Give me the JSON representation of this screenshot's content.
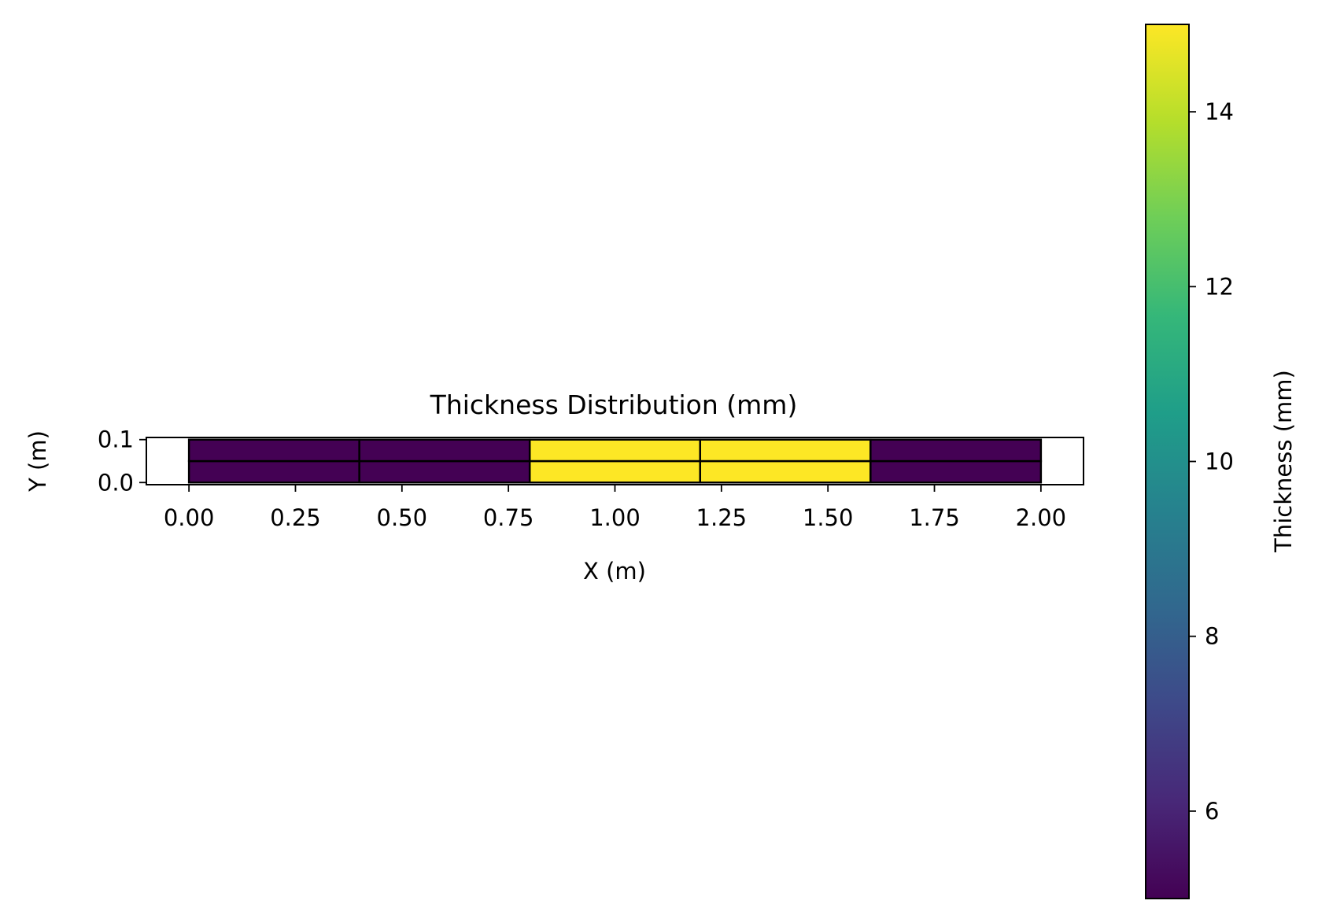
{
  "chart_data": {
    "type": "heatmap",
    "title": "Thickness Distribution (mm)",
    "xlabel": "X (m)",
    "ylabel": "Y (m)",
    "xlim": [
      -0.1,
      2.1
    ],
    "ylim": [
      -0.005,
      0.105
    ],
    "x_ticks": [
      0.0,
      0.25,
      0.5,
      0.75,
      1.0,
      1.25,
      1.5,
      1.75,
      2.0
    ],
    "x_tick_labels": [
      "0.00",
      "0.25",
      "0.50",
      "0.75",
      "1.00",
      "1.25",
      "1.50",
      "1.75",
      "2.00"
    ],
    "y_ticks": [
      0.0,
      0.1
    ],
    "y_tick_labels": [
      "0.0",
      "0.1"
    ],
    "x_edges": [
      0.0,
      0.4,
      0.8,
      1.2,
      1.6,
      2.0
    ],
    "y_edges": [
      0.0,
      0.05,
      0.1
    ],
    "values": [
      [
        5,
        5,
        15,
        15,
        5
      ],
      [
        5,
        5,
        15,
        15,
        5
      ]
    ],
    "grid": false,
    "cell_edgecolor": "#000000",
    "colormap": "viridis",
    "colorbar": {
      "label": "Thickness (mm)",
      "range": [
        5,
        15
      ],
      "ticks": [
        6,
        8,
        10,
        12,
        14
      ],
      "tick_labels": [
        "6",
        "8",
        "10",
        "12",
        "14"
      ],
      "colors": [
        "#440154",
        "#482878",
        "#3e4989",
        "#31688e",
        "#26828e",
        "#1f9e89",
        "#35b779",
        "#6ece58",
        "#b5de2b",
        "#fde725"
      ]
    }
  }
}
